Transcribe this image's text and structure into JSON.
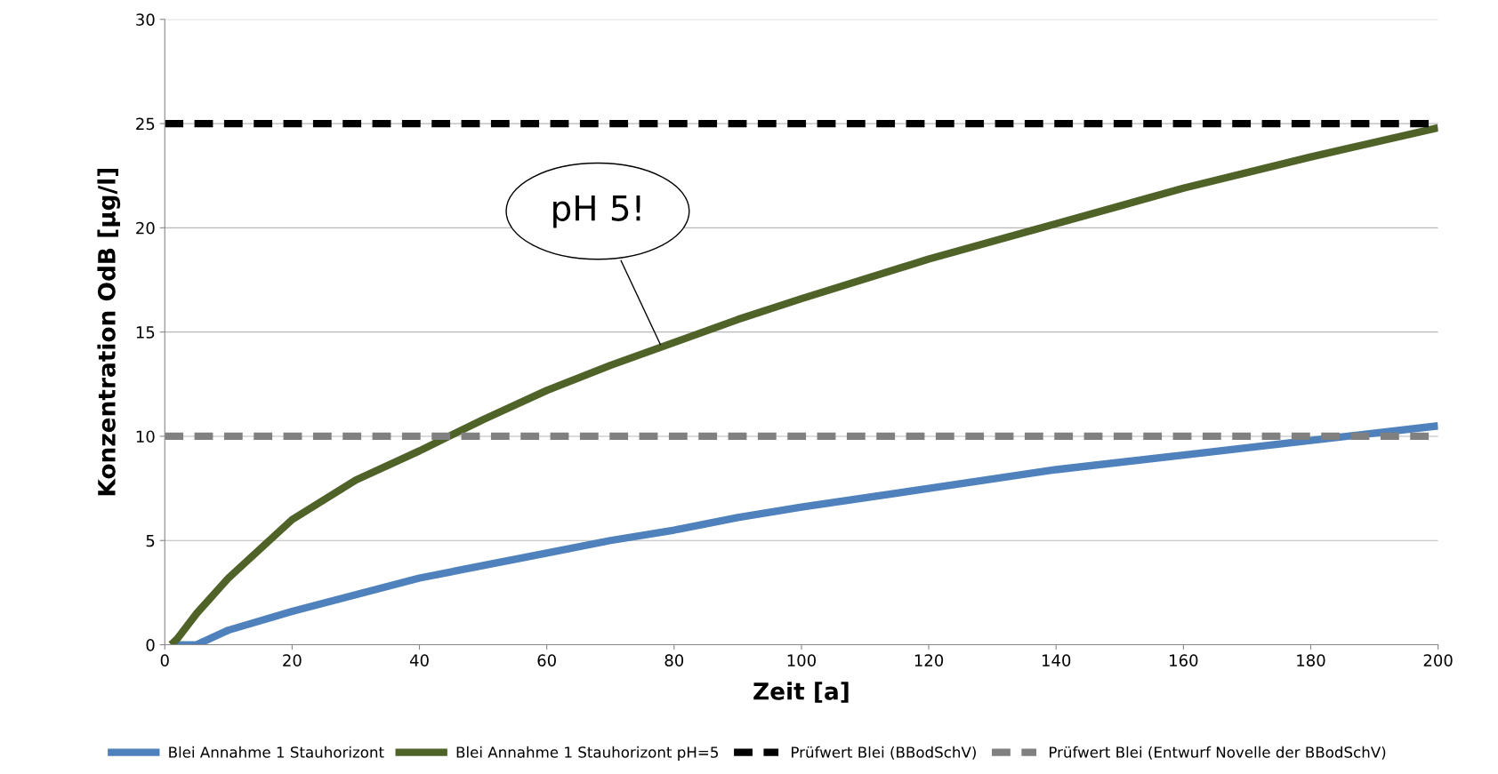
{
  "chart_data": {
    "type": "line",
    "xlabel": "Zeit [a]",
    "ylabel": "Konzentration OdB [µg/l]",
    "xlim": [
      0,
      200
    ],
    "xticks": [
      0,
      20,
      40,
      60,
      80,
      100,
      120,
      140,
      160,
      180,
      200
    ],
    "ylim": [
      0,
      30
    ],
    "yticks": [
      0,
      5,
      10,
      15,
      20,
      25,
      30
    ],
    "grid": "y",
    "legend": "bottom",
    "series": [
      {
        "name": "Blei Annahme 1 Stauhorizont",
        "color": "#4f81bd",
        "line_style": "solid",
        "x": [
          1,
          5,
          10,
          20,
          30,
          40,
          50,
          60,
          70,
          80,
          90,
          100,
          120,
          140,
          160,
          180,
          200
        ],
        "values": [
          0,
          0,
          0.7,
          1.6,
          2.4,
          3.2,
          3.8,
          4.4,
          5.0,
          5.5,
          6.1,
          6.6,
          7.5,
          8.4,
          9.1,
          9.8,
          10.5
        ]
      },
      {
        "name": "Blei Annahme 1 Stauhorizont pH=5",
        "color": "#4f6228",
        "line_style": "solid",
        "x": [
          1,
          2,
          5,
          10,
          20,
          30,
          40,
          50,
          60,
          70,
          80,
          90,
          100,
          120,
          140,
          160,
          180,
          200
        ],
        "values": [
          0,
          0.3,
          1.5,
          3.2,
          6.0,
          7.9,
          9.3,
          10.8,
          12.2,
          13.4,
          14.5,
          15.6,
          16.6,
          18.5,
          20.2,
          21.9,
          23.4,
          24.8
        ]
      },
      {
        "name": "Prüfwert Blei (BBodSchV)",
        "color": "#000000",
        "line_style": "dashed",
        "x": [
          0,
          200
        ],
        "values": [
          25,
          25
        ]
      },
      {
        "name": "Prüfwert Blei (Entwurf Novelle der BBodSchV)",
        "color": "#808080",
        "line_style": "dashed",
        "x": [
          0,
          200
        ],
        "values": [
          10,
          10
        ]
      }
    ],
    "annotations": [
      {
        "text": "pH 5!",
        "x": 78,
        "y": 14.3
      }
    ]
  }
}
